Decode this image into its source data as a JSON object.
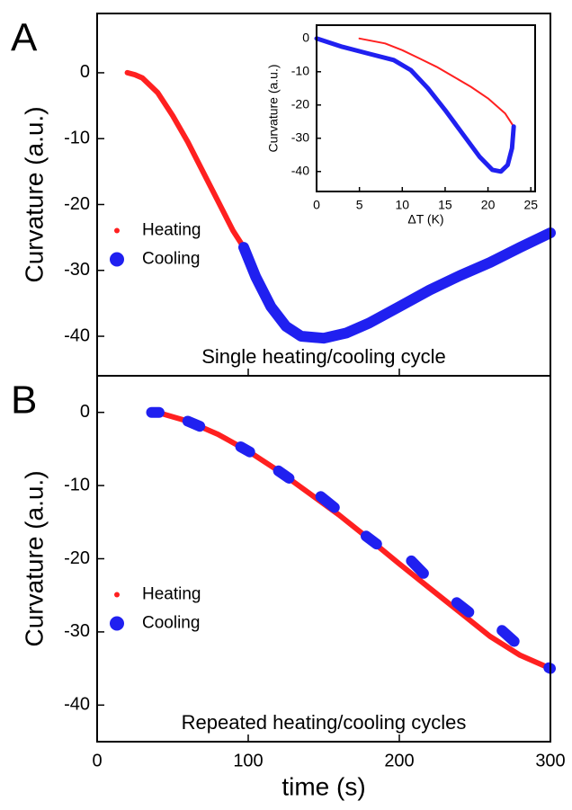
{
  "chart_data": [
    {
      "type": "line",
      "label": "A",
      "annotation": "Single heating/cooling cycle",
      "ylabel": "Curvature (a.u.)",
      "xlim": [
        0,
        300
      ],
      "xticks": [
        0,
        100,
        200,
        300
      ],
      "ylim": [
        -46,
        9
      ],
      "yticks": [
        0,
        -10,
        -20,
        -30,
        -40
      ],
      "legend": "center left",
      "series": [
        {
          "name": "Heating",
          "color": "#ff2020",
          "x": [
            20,
            25,
            30,
            40,
            50,
            60,
            70,
            80,
            90,
            97
          ],
          "values": [
            0,
            -0.3,
            -0.8,
            -3,
            -6.5,
            -10.5,
            -15,
            -19.5,
            -24,
            -26.5
          ]
        },
        {
          "name": "Cooling",
          "color": "#2020f0",
          "x": [
            97,
            105,
            115,
            125,
            135,
            150,
            165,
            180,
            200,
            220,
            240,
            260,
            280,
            300
          ],
          "values": [
            -26.5,
            -31,
            -35.5,
            -38.5,
            -40,
            -40.3,
            -39.5,
            -38,
            -35.5,
            -33,
            -30.8,
            -28.8,
            -26.5,
            -24.3
          ]
        }
      ]
    },
    {
      "type": "line",
      "xlabel": "ΔT (K)",
      "ylabel": "Curvature (a.u.)",
      "xlim": [
        0,
        25.5
      ],
      "xticks": [
        0,
        5,
        10,
        15,
        20,
        25
      ],
      "ylim": [
        -46,
        4
      ],
      "yticks": [
        0,
        -10,
        -20,
        -30,
        -40
      ],
      "series": [
        {
          "name": "Heating",
          "color": "#ff2020",
          "x": [
            5,
            8,
            10,
            12,
            14,
            16,
            18,
            20,
            22,
            23
          ],
          "values": [
            0,
            -1.5,
            -3.5,
            -6,
            -8.5,
            -11.5,
            -14.5,
            -18,
            -22.5,
            -26.5
          ]
        },
        {
          "name": "Cooling",
          "color": "#2020f0",
          "x": [
            23,
            22.8,
            22.3,
            21.5,
            20.5,
            19,
            17,
            15,
            13,
            11,
            9,
            6,
            3,
            0
          ],
          "values": [
            -26.5,
            -33,
            -38,
            -40,
            -39.5,
            -35.5,
            -28.5,
            -21.5,
            -15,
            -9.5,
            -6.5,
            -4.5,
            -2.5,
            0
          ]
        }
      ]
    },
    {
      "type": "line",
      "label": "B",
      "annotation": "Repeated heating/cooling cycles",
      "xlabel": "time (s)",
      "ylabel": "Curvature (a.u.)",
      "xlim": [
        0,
        300
      ],
      "xticks": [
        0,
        100,
        200,
        300
      ],
      "ylim": [
        -45,
        5
      ],
      "yticks": [
        0,
        -10,
        -20,
        -30,
        -40
      ],
      "legend": "center left",
      "series": [
        {
          "name": "Heating",
          "color": "#ff2020",
          "x": [
            37,
            40,
            60,
            80,
            100,
            120,
            140,
            160,
            180,
            200,
            220,
            240,
            260,
            280,
            300
          ],
          "values": [
            0,
            0,
            -1.2,
            -3,
            -5.3,
            -8,
            -11,
            -14,
            -17.3,
            -20.7,
            -24,
            -27.3,
            -30.6,
            -33.2,
            -35
          ]
        },
        {
          "name": "Cooling",
          "color": "#2020f0",
          "x": [
            36,
            41,
            50,
            60,
            68,
            80,
            95,
            101,
            110,
            120,
            127,
            140,
            148,
            157,
            170,
            178,
            185,
            200,
            208,
            216,
            230,
            238,
            246,
            260,
            268,
            276,
            290,
            299,
            300
          ],
          "values": [
            0,
            0,
            null,
            -1.2,
            -1.9,
            null,
            -4.7,
            -5.4,
            null,
            -8,
            -9,
            null,
            -11.5,
            -13,
            null,
            -16.9,
            -18,
            null,
            -20.3,
            -22,
            null,
            -26,
            -27.3,
            null,
            -29.8,
            -31.3,
            null,
            -34.9,
            -35
          ]
        }
      ]
    }
  ]
}
